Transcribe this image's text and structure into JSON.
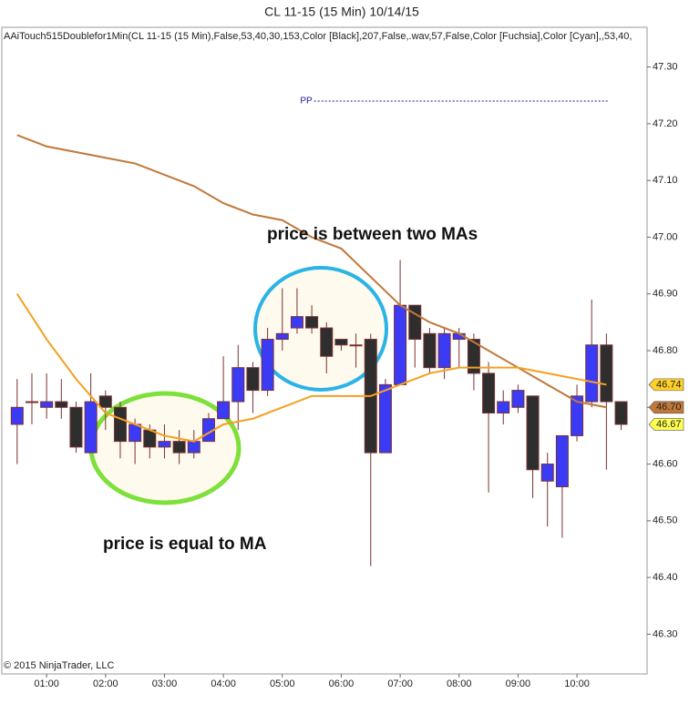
{
  "chart_data": {
    "type": "candlestick",
    "title": "CL 11-15 (15 Min)  10/14/15",
    "subtitle": "AAiTouch515Doublefor1Min(CL 11-15 (15 Min),False,53,40,30,153,Color [Black],207,False,.wav,57,False,Color [Fuchsia],Color [Cyan],,53,40,",
    "credit": "© 2015 NinjaTrader, LLC",
    "annotations": [
      "price is between two MAs",
      "price is equal to MA"
    ],
    "x": [
      0.5,
      0.75,
      1,
      1.25,
      1.5,
      1.75,
      2,
      2.25,
      2.5,
      2.75,
      3,
      3.25,
      3.5,
      3.75,
      4,
      4.25,
      4.5,
      4.75,
      5,
      5.25,
      5.5,
      5.75,
      6,
      6.25,
      6.5,
      6.75,
      7,
      7.25,
      7.5,
      7.75,
      8,
      8.25,
      8.5,
      8.75,
      9,
      9.25,
      9.5,
      9.75,
      10,
      10.25,
      10.5,
      10.75
    ],
    "open": [
      46.67,
      46.71,
      46.7,
      46.71,
      46.7,
      46.62,
      46.72,
      46.7,
      46.64,
      46.66,
      46.63,
      46.64,
      46.62,
      46.64,
      46.68,
      46.71,
      46.77,
      46.73,
      46.82,
      46.84,
      46.86,
      46.84,
      46.82,
      46.81,
      46.82,
      46.62,
      46.74,
      46.88,
      46.83,
      46.77,
      46.82,
      46.82,
      46.76,
      46.69,
      46.7,
      46.72,
      46.57,
      46.56,
      46.65,
      46.71,
      46.81,
      46.71
    ],
    "high": [
      46.75,
      46.76,
      46.76,
      46.75,
      46.71,
      46.76,
      46.73,
      46.71,
      46.68,
      46.67,
      46.67,
      46.66,
      46.66,
      46.69,
      46.79,
      46.81,
      46.78,
      46.84,
      46.91,
      46.91,
      46.88,
      46.85,
      46.82,
      46.83,
      46.83,
      46.75,
      46.96,
      46.88,
      46.84,
      46.84,
      46.84,
      46.83,
      46.78,
      46.73,
      46.74,
      46.72,
      46.62,
      46.65,
      46.74,
      46.89,
      46.83,
      46.71
    ],
    "low": [
      46.6,
      46.67,
      46.68,
      46.68,
      46.62,
      46.62,
      46.66,
      46.61,
      46.6,
      46.61,
      46.61,
      46.6,
      46.61,
      46.64,
      46.68,
      46.66,
      46.69,
      46.72,
      46.8,
      46.83,
      46.83,
      46.76,
      46.8,
      46.77,
      46.42,
      46.62,
      46.74,
      46.77,
      46.76,
      46.75,
      46.77,
      46.73,
      46.55,
      46.67,
      46.69,
      46.54,
      46.49,
      46.47,
      46.64,
      46.7,
      46.59,
      46.66
    ],
    "close": [
      46.7,
      46.71,
      46.71,
      46.7,
      46.63,
      46.71,
      46.7,
      46.64,
      46.67,
      46.63,
      46.64,
      46.62,
      46.64,
      46.68,
      46.71,
      46.77,
      46.73,
      46.82,
      46.83,
      46.86,
      46.84,
      46.79,
      46.81,
      46.81,
      46.62,
      46.74,
      46.88,
      46.82,
      46.77,
      46.83,
      46.83,
      46.76,
      46.69,
      46.71,
      46.73,
      46.59,
      46.6,
      46.65,
      46.72,
      46.81,
      46.71,
      46.67
    ],
    "up_color": "#3b3bf5",
    "down_color": "#2e2e2e",
    "wick_color": "#7a3030",
    "ma_x": [
      0.5,
      1,
      1.5,
      2,
      2.5,
      3,
      3.5,
      4,
      4.5,
      5,
      5.5,
      6,
      6.5,
      7,
      7.5,
      8,
      8.5,
      9,
      9.5,
      10,
      10.5
    ],
    "ma_lines": [
      {
        "color": "#c0783a",
        "values": [
          47.18,
          47.16,
          47.15,
          47.14,
          47.13,
          47.11,
          47.09,
          47.06,
          47.04,
          47.03,
          47.0,
          46.98,
          46.93,
          46.88,
          46.85,
          46.83,
          46.8,
          46.77,
          46.74,
          46.71,
          46.7
        ]
      },
      {
        "color": "#f5a020",
        "values": [
          46.9,
          46.82,
          46.75,
          46.69,
          46.67,
          46.65,
          46.64,
          46.67,
          46.68,
          46.7,
          46.72,
          46.72,
          46.72,
          46.74,
          46.76,
          46.77,
          46.77,
          46.77,
          46.76,
          46.75,
          46.74
        ]
      }
    ],
    "pivot": {
      "label": "PP",
      "value": 47.24,
      "x": [
        5.54,
        10.52
      ],
      "color": "#1a1a9a"
    },
    "price_markers": [
      {
        "value": 46.74,
        "color": "#ffd02a"
      },
      {
        "value": 46.7,
        "label": "46.70",
        "color": "#c0783a"
      },
      {
        "value": 46.67,
        "color": "#ffff50"
      }
    ],
    "xlim": [
      0.24,
      11.19
    ],
    "ylim": [
      46.23,
      47.37
    ],
    "xticks": [
      {
        "value": 1,
        "label": "01:00"
      },
      {
        "value": 2,
        "label": "02:00"
      },
      {
        "value": 3,
        "label": "03:00"
      },
      {
        "value": 4,
        "label": "04:00"
      },
      {
        "value": 5,
        "label": "05:00"
      },
      {
        "value": 6,
        "label": "06:00"
      },
      {
        "value": 7,
        "label": "07:00"
      },
      {
        "value": 8,
        "label": "08:00"
      },
      {
        "value": 9,
        "label": "09:00"
      },
      {
        "value": 10,
        "label": "10:00"
      }
    ],
    "yticks": [
      {
        "value": 46.3,
        "label": "46.30"
      },
      {
        "value": 46.4,
        "label": "46.40"
      },
      {
        "value": 46.5,
        "label": "46.50"
      },
      {
        "value": 46.6,
        "label": "46.60"
      },
      {
        "value": 46.7,
        "label": "46.70"
      },
      {
        "value": 46.8,
        "label": "46.80"
      },
      {
        "value": 46.9,
        "label": "46.90"
      },
      {
        "value": 47,
        "label": "47.00"
      },
      {
        "value": 47.1,
        "label": "47.10"
      },
      {
        "value": 47.2,
        "label": "47.20"
      },
      {
        "value": 47.3,
        "label": "47.30"
      }
    ]
  }
}
